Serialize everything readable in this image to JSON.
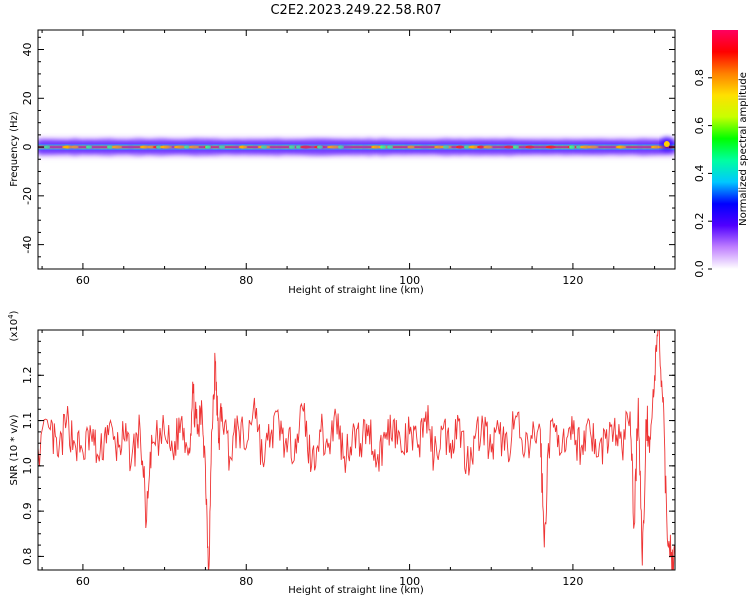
{
  "title": "C2E2.2023.249.22.58.R07",
  "chart_data": [
    {
      "type": "heatmap",
      "xlabel": "Height of straight line (km)",
      "ylabel": "Frequency (Hz)",
      "xlim": [
        54.5,
        132.5
      ],
      "ylim": [
        -50,
        48
      ],
      "x_ticks": [
        60,
        80,
        100,
        120
      ],
      "y_ticks": [
        -40,
        -20,
        0,
        20,
        40
      ],
      "y_tick_labels": [
        "-40",
        "-20",
        "0",
        "20",
        "40"
      ],
      "band_center_hz": 0,
      "colorbar": {
        "label": "Normalized spectral amplitude",
        "range": [
          0,
          1
        ],
        "ticks": [
          0.0,
          0.2,
          0.4,
          0.6,
          0.8
        ],
        "tick_labels": [
          "0.0",
          "0.2",
          "0.4",
          "0.6",
          "0.8"
        ],
        "colors": [
          "#ffffff",
          "#c080ff",
          "#5000ff",
          "#0000ff",
          "#00c8ff",
          "#00ffa0",
          "#00ff00",
          "#c8ff00",
          "#ffe000",
          "#ff8000",
          "#ff0000",
          "#ff0060"
        ]
      }
    },
    {
      "type": "line",
      "xlabel": "Height of straight line (km)",
      "ylabel": "SNR (10 * v/v)",
      "y_multiplier": "(x10",
      "y_multiplier_exp": "4",
      "y_multiplier_close": ")",
      "xlim": [
        54.5,
        132.5
      ],
      "ylim": [
        0.77,
        1.3
      ],
      "x_ticks": [
        60,
        80,
        100,
        120
      ],
      "y_ticks": [
        0.8,
        0.9,
        1.0,
        1.1,
        1.2
      ],
      "y_tick_labels": [
        "0.8",
        "0.9",
        "1.0",
        "1.1",
        "1.2"
      ],
      "series": [
        {
          "color": "#ee3333",
          "x": [
            54.5,
            56,
            57,
            58,
            59,
            60,
            61,
            62,
            63,
            64,
            65,
            66,
            67,
            67.8,
            68.5,
            70,
            71,
            72,
            73,
            73.5,
            74,
            74.6,
            75,
            75.4,
            75.8,
            76.2,
            76.6,
            77,
            78,
            79,
            80,
            81,
            82,
            83,
            84,
            85,
            86,
            87,
            88,
            89,
            90,
            91,
            92,
            93,
            94,
            95,
            96,
            97,
            98,
            99,
            100,
            101,
            102,
            103,
            104,
            105,
            106,
            107,
            108,
            109,
            110,
            111,
            112,
            113,
            114,
            115,
            116,
            116.5,
            117,
            118,
            119,
            120,
            121,
            122,
            123,
            124,
            125,
            126,
            127,
            127.5,
            128,
            128.5,
            129,
            129.5,
            130,
            130.5,
            131,
            131.5,
            132,
            132.5
          ],
          "y": [
            1.04,
            1.08,
            1.02,
            1.1,
            1.05,
            1.03,
            1.07,
            1.01,
            1.09,
            1.04,
            1.06,
            1.02,
            1.08,
            0.88,
            1.05,
            1.07,
            1.03,
            1.1,
            1.04,
            1.16,
            1.07,
            1.12,
            1.0,
            0.77,
            1.08,
            1.23,
            1.05,
            1.13,
            1.02,
            1.09,
            1.04,
            1.15,
            1.01,
            1.07,
            1.1,
            1.03,
            1.06,
            1.12,
            1.0,
            1.08,
            1.04,
            1.11,
            1.02,
            1.07,
            1.05,
            1.09,
            1.01,
            1.06,
            1.1,
            1.03,
            1.07,
            1.04,
            1.12,
            1.02,
            1.08,
            1.05,
            1.1,
            1.01,
            1.06,
            1.09,
            1.03,
            1.07,
            1.04,
            1.11,
            1.02,
            1.06,
            1.08,
            0.82,
            1.05,
            1.09,
            1.03,
            1.07,
            1.04,
            1.1,
            1.02,
            1.06,
            1.08,
            1.04,
            1.12,
            0.87,
            1.15,
            0.78,
            1.1,
            1.06,
            1.2,
            1.3,
            1.14,
            0.88,
            0.8,
            0.8
          ]
        }
      ]
    }
  ]
}
